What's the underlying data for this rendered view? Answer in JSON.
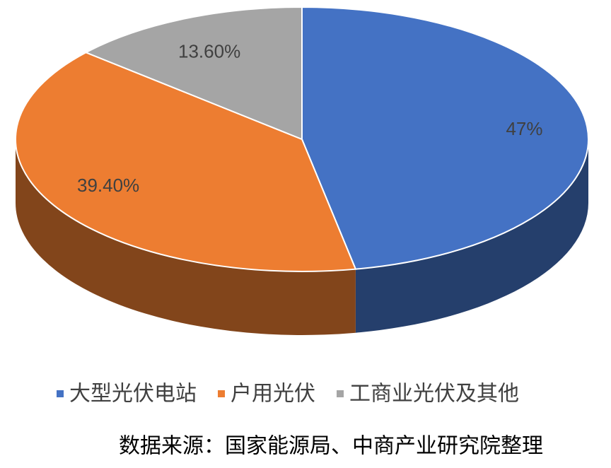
{
  "chart_data": {
    "type": "pie",
    "categories": [
      "大型光伏电站",
      "户用光伏",
      "工商业光伏及其他"
    ],
    "values": [
      47,
      39.4,
      13.6
    ],
    "value_labels": [
      "47%",
      "39.40%",
      "13.60%"
    ],
    "colors": [
      "#4472c4",
      "#ed7d31",
      "#a5a5a5"
    ],
    "legend": "bottom",
    "source": "数据来源：国家能源局、中商产业研究院整理"
  }
}
